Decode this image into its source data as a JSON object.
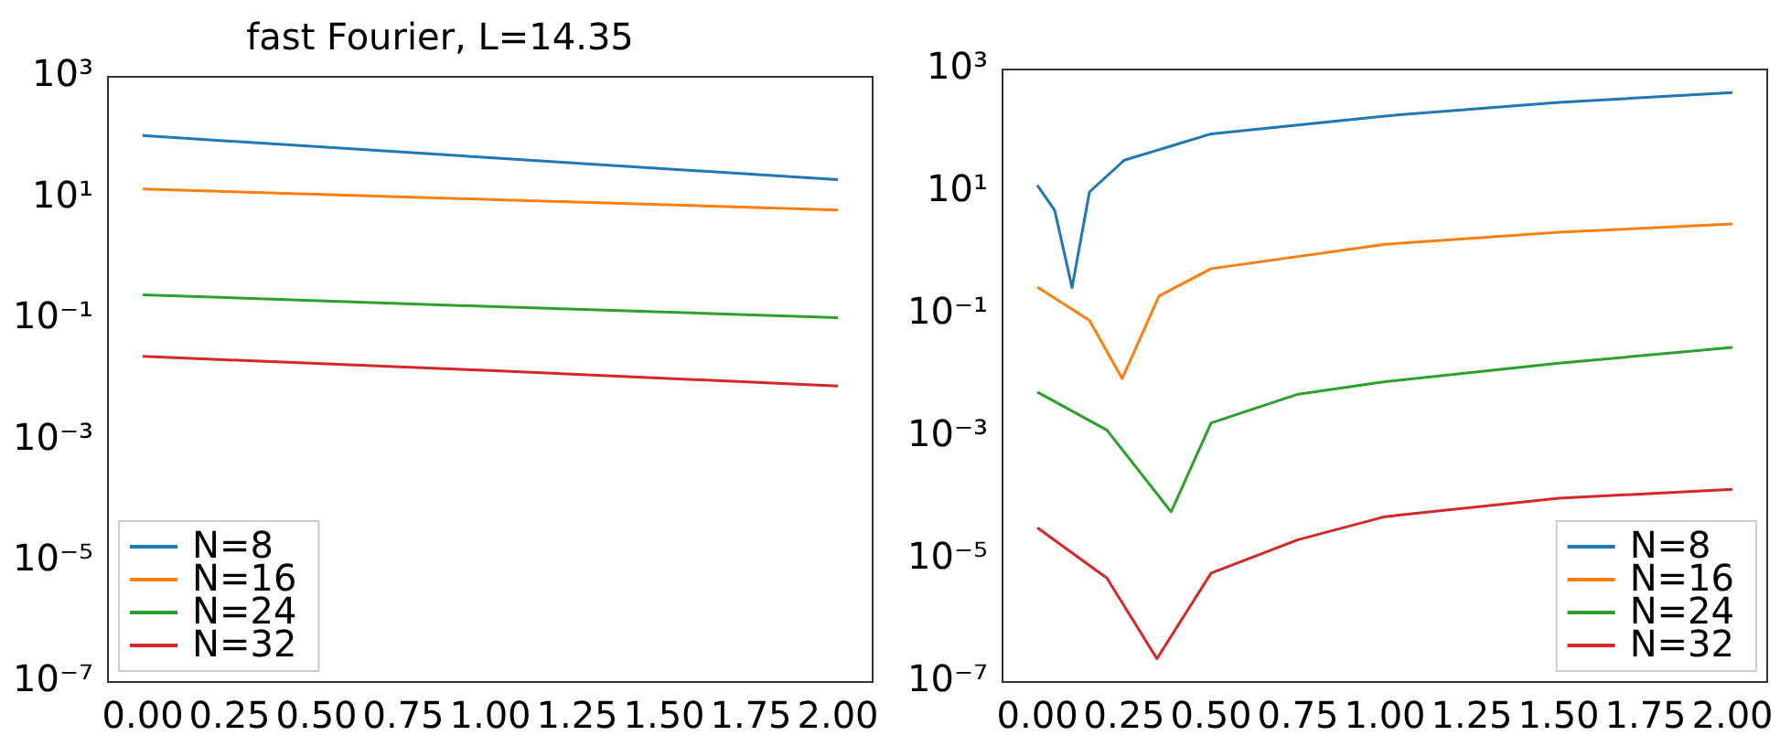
{
  "chart_data": [
    {
      "type": "line",
      "title": "fast Fourier, L=14.35",
      "log": "y",
      "grid": false,
      "legend": "bottom left",
      "xlim": [
        -0.1,
        2.1
      ],
      "ylim": [
        1e-07,
        1000
      ],
      "xticks": [
        {
          "value": 0,
          "label": "0.00"
        },
        {
          "value": 0.25,
          "label": "0.25"
        },
        {
          "value": 0.5,
          "label": "0.50"
        },
        {
          "value": 0.75,
          "label": "0.75"
        },
        {
          "value": 1,
          "label": "1.00"
        },
        {
          "value": 1.25,
          "label": "1.25"
        },
        {
          "value": 1.5,
          "label": "1.50"
        },
        {
          "value": 1.75,
          "label": "1.75"
        },
        {
          "value": 2,
          "label": "2.00"
        }
      ],
      "yticks": [
        {
          "value": 1000,
          "label": "10³"
        },
        {
          "value": 10,
          "label": "10¹"
        },
        {
          "value": 0.1,
          "label": "10⁻¹"
        },
        {
          "value": 0.001,
          "label": "10⁻³"
        },
        {
          "value": 1e-05,
          "label": "10⁻⁵"
        },
        {
          "value": 1e-07,
          "label": "10⁻⁷"
        }
      ],
      "x": [
        0,
        1,
        2
      ],
      "series": [
        {
          "name": "N=8",
          "color": "#1f77b4",
          "values": [
            107,
            46,
            20
          ]
        },
        {
          "name": "N=16",
          "color": "#ff7f0e",
          "values": [
            14,
            9.4,
            6.3
          ]
        },
        {
          "name": "N=24",
          "color": "#2ca02c",
          "values": [
            0.25,
            0.16,
            0.105
          ]
        },
        {
          "name": "N=32",
          "color": "#d62728",
          "values": [
            0.024,
            0.014,
            0.0078
          ]
        }
      ]
    },
    {
      "type": "line",
      "log": "y",
      "grid": false,
      "legend": "bottom right",
      "xlim": [
        -0.1,
        2.1
      ],
      "ylim": [
        1e-07,
        1000
      ],
      "xticks": [
        {
          "value": 0,
          "label": "0.00"
        },
        {
          "value": 0.25,
          "label": "0.25"
        },
        {
          "value": 0.5,
          "label": "0.50"
        },
        {
          "value": 0.75,
          "label": "0.75"
        },
        {
          "value": 1,
          "label": "1.00"
        },
        {
          "value": 1.25,
          "label": "1.25"
        },
        {
          "value": 1.5,
          "label": "1.50"
        },
        {
          "value": 1.75,
          "label": "1.75"
        },
        {
          "value": 2,
          "label": "2.00"
        }
      ],
      "yticks": [
        {
          "value": 1000,
          "label": "10³"
        },
        {
          "value": 10,
          "label": "10¹"
        },
        {
          "value": 0.1,
          "label": "10⁻¹"
        },
        {
          "value": 0.001,
          "label": "10⁻³"
        },
        {
          "value": 1e-05,
          "label": "10⁻⁵"
        },
        {
          "value": 1e-07,
          "label": "10⁻⁷"
        }
      ],
      "series": [
        {
          "name": "N=8",
          "color": "#1f77b4",
          "x": [
            0,
            0.05,
            0.1,
            0.15,
            0.25,
            0.5,
            1,
            1.5,
            2
          ],
          "values": [
            12.9,
            5,
            0.275,
            10,
            33,
            89,
            174,
            290,
            420
          ]
        },
        {
          "name": "N=16",
          "color": "#ff7f0e",
          "x": [
            0,
            0.15,
            0.244,
            0.35,
            0.5,
            1,
            1.5,
            2
          ],
          "values": [
            0.28,
            0.08,
            0.009,
            0.2,
            0.56,
            1.4,
            2.2,
            3
          ]
        },
        {
          "name": "N=24",
          "color": "#2ca02c",
          "x": [
            0,
            0.2,
            0.385,
            0.5,
            0.75,
            1,
            1.5,
            2
          ],
          "values": [
            0.0054,
            0.0013,
            6e-05,
            0.0017,
            0.005,
            0.008,
            0.016,
            0.029
          ]
        },
        {
          "name": "N=32",
          "color": "#d62728",
          "x": [
            0,
            0.2,
            0.344,
            0.5,
            0.75,
            1,
            1.5,
            2
          ],
          "values": [
            3.3e-05,
            5e-06,
            2.4e-07,
            6e-06,
            2.1e-05,
            5e-05,
            0.0001,
            0.00014
          ]
        }
      ]
    }
  ]
}
